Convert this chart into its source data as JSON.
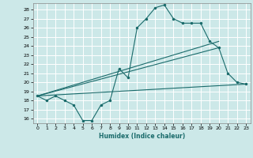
{
  "xlabel": "Humidex (Indice chaleur)",
  "bg_color": "#cce8e8",
  "grid_color": "#ffffff",
  "line_color": "#1a6b6b",
  "xlim": [
    -0.5,
    23.5
  ],
  "ylim": [
    15.5,
    28.7
  ],
  "yticks": [
    16,
    17,
    18,
    19,
    20,
    21,
    22,
    23,
    24,
    25,
    26,
    27,
    28
  ],
  "xticks": [
    0,
    1,
    2,
    3,
    4,
    5,
    6,
    7,
    8,
    9,
    10,
    11,
    12,
    13,
    14,
    15,
    16,
    17,
    18,
    19,
    20,
    21,
    22,
    23
  ],
  "main_x": [
    0,
    1,
    2,
    3,
    4,
    5,
    6,
    7,
    8,
    9,
    10,
    11,
    12,
    13,
    14,
    15,
    16,
    17,
    18,
    19,
    20,
    21,
    22,
    23
  ],
  "main_y": [
    18.5,
    18.0,
    18.5,
    18.0,
    17.5,
    15.8,
    15.8,
    17.5,
    18.0,
    21.5,
    20.5,
    26.0,
    27.0,
    28.2,
    28.5,
    27.0,
    26.5,
    26.5,
    26.5,
    24.5,
    23.8,
    21.0,
    20.0,
    19.8
  ],
  "trend1_x": [
    0,
    20
  ],
  "trend1_y": [
    18.5,
    24.5
  ],
  "trend2_x": [
    0,
    20
  ],
  "trend2_y": [
    18.5,
    23.8
  ],
  "trend3_x": [
    0,
    23
  ],
  "trend3_y": [
    18.5,
    19.8
  ]
}
